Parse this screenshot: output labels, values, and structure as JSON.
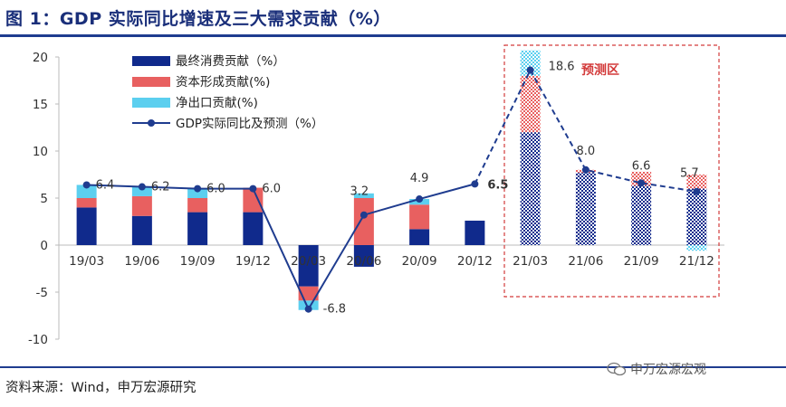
{
  "header": {
    "title": "图 1：GDP 实际同比增速及三大需求贡献（%）"
  },
  "footer": {
    "source": "资料来源：Wind，申万宏源研究",
    "watermark": "申万宏源宏观"
  },
  "colors": {
    "consumption": "#102a8c",
    "investment": "#e86060",
    "net_export": "#5ccfef",
    "gdp_line": "#1f3c8f",
    "forecast_box": "#d33b3b",
    "axis": "#bbbbbb"
  },
  "chart_data": {
    "type": "bar",
    "stacked": true,
    "categories": [
      "19/03",
      "19/06",
      "19/09",
      "19/12",
      "20/03",
      "20/06",
      "20/09",
      "20/12",
      "21/03",
      "21/06",
      "21/09",
      "21/12"
    ],
    "ylim": [
      -10,
      20
    ],
    "yticks": [
      -10,
      -5,
      0,
      5,
      10,
      15,
      20
    ],
    "series": [
      {
        "name": "最终消费贡献（%）",
        "kind": "bar",
        "values": [
          4.0,
          3.1,
          3.5,
          3.5,
          -4.4,
          -2.3,
          1.7,
          2.6,
          12.0,
          7.7,
          6.3,
          6.0
        ]
      },
      {
        "name": "资本形成贡献(%)",
        "kind": "bar",
        "values": [
          1.0,
          2.1,
          1.5,
          2.6,
          -1.5,
          5.0,
          2.6,
          0.0,
          6.0,
          0.3,
          1.5,
          1.5
        ]
      },
      {
        "name": "净出口贡献(%)",
        "kind": "bar",
        "values": [
          1.4,
          1.0,
          1.0,
          0.0,
          -1.0,
          0.5,
          0.6,
          0.0,
          2.7,
          0.0,
          0.0,
          -0.6
        ]
      },
      {
        "name": "GDP实际同比及预测（%）",
        "kind": "line",
        "values": [
          6.4,
          6.2,
          6.0,
          6.0,
          -6.8,
          3.2,
          4.9,
          6.5,
          18.6,
          8.0,
          6.6,
          5.7
        ],
        "labels": [
          "6.4",
          "6.2",
          "6.0",
          "6.0",
          "-6.8",
          "3.2",
          "4.9",
          "6.5",
          "18.6",
          "8.0",
          "6.6",
          "5.7"
        ]
      }
    ],
    "forecast": {
      "label": "预测区",
      "categories": [
        "21/03",
        "21/06",
        "21/09",
        "21/12"
      ]
    },
    "legend_position": "top-left",
    "grid": false
  }
}
